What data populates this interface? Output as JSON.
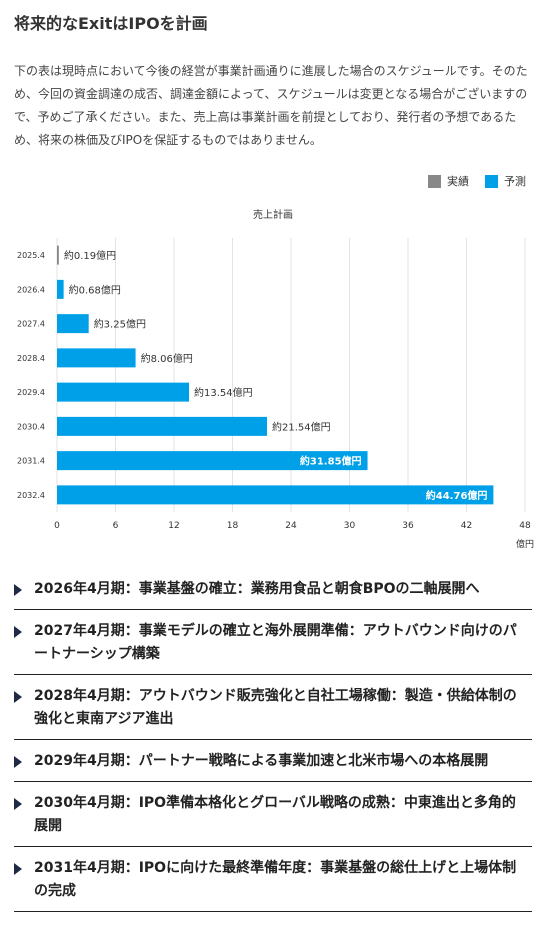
{
  "section": {
    "title": "将来的なExitはIPOを計画",
    "intro": "下の表は現時点において今後の経営が事業計画通りに進展した場合のスケジュールです。そのため、今回の資金調達の成否、調達金額によって、スケジュールは変更となる場合がございますので、予めご了承ください。また、売上高は事業計画を前提としており、発行者の予想であるため、将来の株価及びIPOを保証するものではありません。"
  },
  "legend": {
    "items": [
      {
        "label": "実績",
        "color": "#888888"
      },
      {
        "label": "予測",
        "color": "#00a0e9"
      }
    ]
  },
  "chart_data": {
    "type": "bar",
    "orientation": "horizontal",
    "title": "売上計画",
    "xlabel": "",
    "ylabel": "",
    "unit_label": "億円",
    "categories": [
      "2025.4",
      "2026.4",
      "2027.4",
      "2028.4",
      "2029.4",
      "2030.4",
      "2031.4",
      "2032.4"
    ],
    "series": [
      {
        "name": "予測",
        "color": "#00a0e9",
        "values": [
          0.19,
          0.68,
          3.25,
          8.06,
          13.54,
          21.54,
          31.85,
          44.76
        ],
        "labels": [
          "約0.19億円",
          "約0.68億円",
          "約3.25億円",
          "約8.06億円",
          "約13.54億円",
          "約21.54億円",
          "約31.85億円",
          "約44.76億円"
        ]
      }
    ],
    "bar_colors": [
      "#888888",
      "#00a0e9",
      "#00a0e9",
      "#00a0e9",
      "#00a0e9",
      "#00a0e9",
      "#00a0e9",
      "#00a0e9"
    ],
    "label_inside": [
      false,
      false,
      false,
      false,
      false,
      false,
      true,
      true
    ],
    "xlim": [
      0,
      48
    ],
    "xticks": [
      0,
      6,
      12,
      18,
      24,
      30,
      36,
      42,
      48
    ],
    "grid": true,
    "legend_position": "top-right"
  },
  "milestones": [
    {
      "text": "2026年4月期：事業基盤の確立：業務用食品と朝食BPOの二軸展開へ"
    },
    {
      "text": "2027年4月期：事業モデルの確立と海外展開準備：アウトバウンド向けのパートナーシップ構築"
    },
    {
      "text": "2028年4月期：アウトバウンド販売強化と自社工場稼働：製造・供給体制の強化と東南アジア進出"
    },
    {
      "text": "2029年4月期：パートナー戦略による事業加速と北米市場への本格展開"
    },
    {
      "text": "2030年4月期：IPO準備本格化とグローバル戦略の成熟：中東進出と多角的展開"
    },
    {
      "text": "2031年4月期：IPOに向けた最終準備年度：事業基盤の総仕上げと上場体制の完成"
    }
  ]
}
